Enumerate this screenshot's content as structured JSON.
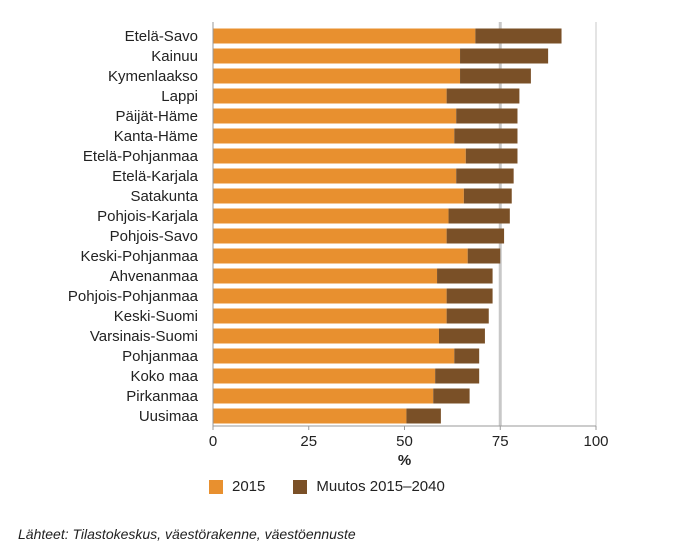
{
  "chart_data": {
    "type": "bar",
    "orientation": "horizontal",
    "stacked": true,
    "categories": [
      "Etelä-Savo",
      "Kainuu",
      "Kymenlaakso",
      "Lappi",
      "Päijät-Häme",
      "Kanta-Häme",
      "Etelä-Pohjanmaa",
      "Etelä-Karjala",
      "Satakunta",
      "Pohjois-Karjala",
      "Pohjois-Savo",
      "Keski-Pohjanmaa",
      "Ahvenanmaa",
      "Pohjois-Pohjanmaa",
      "Keski-Suomi",
      "Varsinais-Suomi",
      "Pohjanmaa",
      "Koko maa",
      "Pirkanmaa",
      "Uusimaa"
    ],
    "series": [
      {
        "name": "2015",
        "color": "#e8902f",
        "values": [
          68.5,
          64.5,
          64.5,
          61,
          63.5,
          63,
          66,
          63.5,
          65.5,
          61.5,
          61,
          66.5,
          58.5,
          61,
          61,
          59,
          63,
          58,
          57.5,
          50.5
        ]
      },
      {
        "name": "Muutos 2015–2040",
        "color": "#7a5027",
        "values": [
          22.5,
          23,
          18.5,
          19,
          16,
          16.5,
          13.5,
          15,
          12.5,
          16,
          15,
          8.5,
          14.5,
          12,
          11,
          12,
          6.5,
          11.5,
          9.5,
          9
        ]
      }
    ],
    "xlabel": "%",
    "xlim": [
      0,
      100
    ],
    "xticks": [
      "0",
      "25",
      "50",
      "75",
      "100"
    ],
    "reference_line": 75,
    "legend_position": "bottom"
  },
  "source_note": "Lähteet: Tilastokeskus, väestörakenne, väestöennuste"
}
